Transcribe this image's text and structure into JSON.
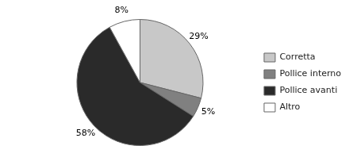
{
  "chart_data": {
    "type": "pie",
    "categories": [
      "Corretta",
      "Pollice interno",
      "Pollice avanti",
      "Altro"
    ],
    "values": [
      29,
      5,
      58,
      8
    ],
    "value_labels": [
      "29%",
      "5%",
      "58%",
      "8%"
    ],
    "colors": [
      "#c8c8c8",
      "#808080",
      "#2a2a2a",
      "#ffffff"
    ],
    "data_labels": true,
    "legend": "right"
  }
}
